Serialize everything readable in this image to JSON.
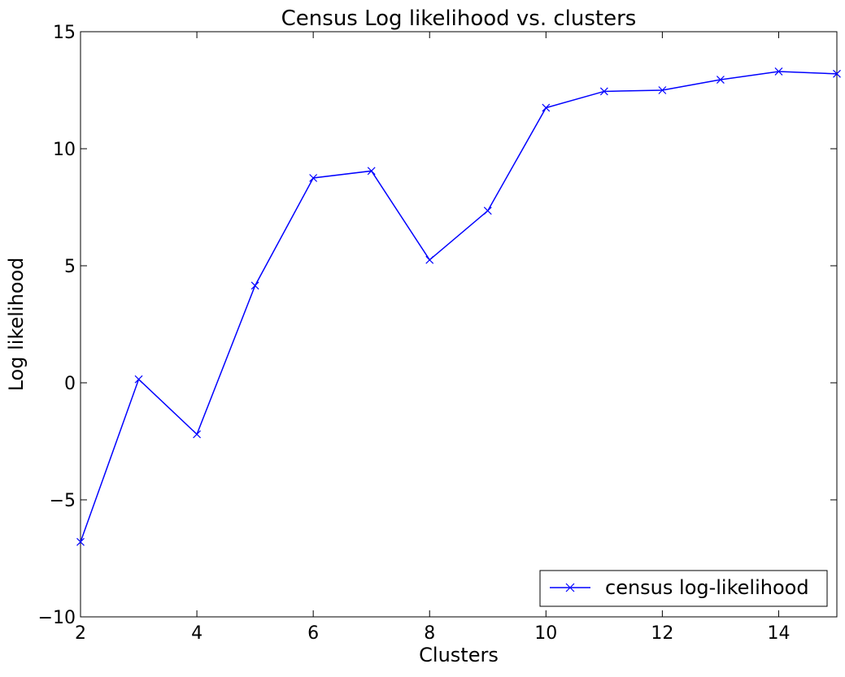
{
  "chart_data": {
    "type": "line",
    "title": "Census  Log likelihood vs. clusters",
    "xlabel": "Clusters",
    "ylabel": "Log likelihood",
    "xlim": [
      2,
      15
    ],
    "ylim": [
      -10,
      15
    ],
    "xticks": [
      2,
      4,
      6,
      8,
      10,
      12,
      14
    ],
    "yticks": [
      -10,
      -5,
      0,
      5,
      10,
      15
    ],
    "xtick_labels": [
      "2",
      "4",
      "6",
      "8",
      "10",
      "12",
      "14"
    ],
    "ytick_labels": [
      "−10",
      "−5",
      "0",
      "5",
      "10",
      "15"
    ],
    "grid": false,
    "legend_position": "lower-right",
    "series": [
      {
        "name": "census log-likelihood",
        "color": "#0000ff",
        "marker": "x",
        "x": [
          2,
          3,
          4,
          5,
          6,
          7,
          8,
          9,
          10,
          11,
          12,
          13,
          14,
          15
        ],
        "y": [
          -6.8,
          0.15,
          -2.2,
          4.15,
          8.75,
          9.05,
          5.25,
          7.35,
          11.75,
          12.45,
          12.5,
          12.95,
          13.3,
          13.2
        ]
      }
    ]
  }
}
